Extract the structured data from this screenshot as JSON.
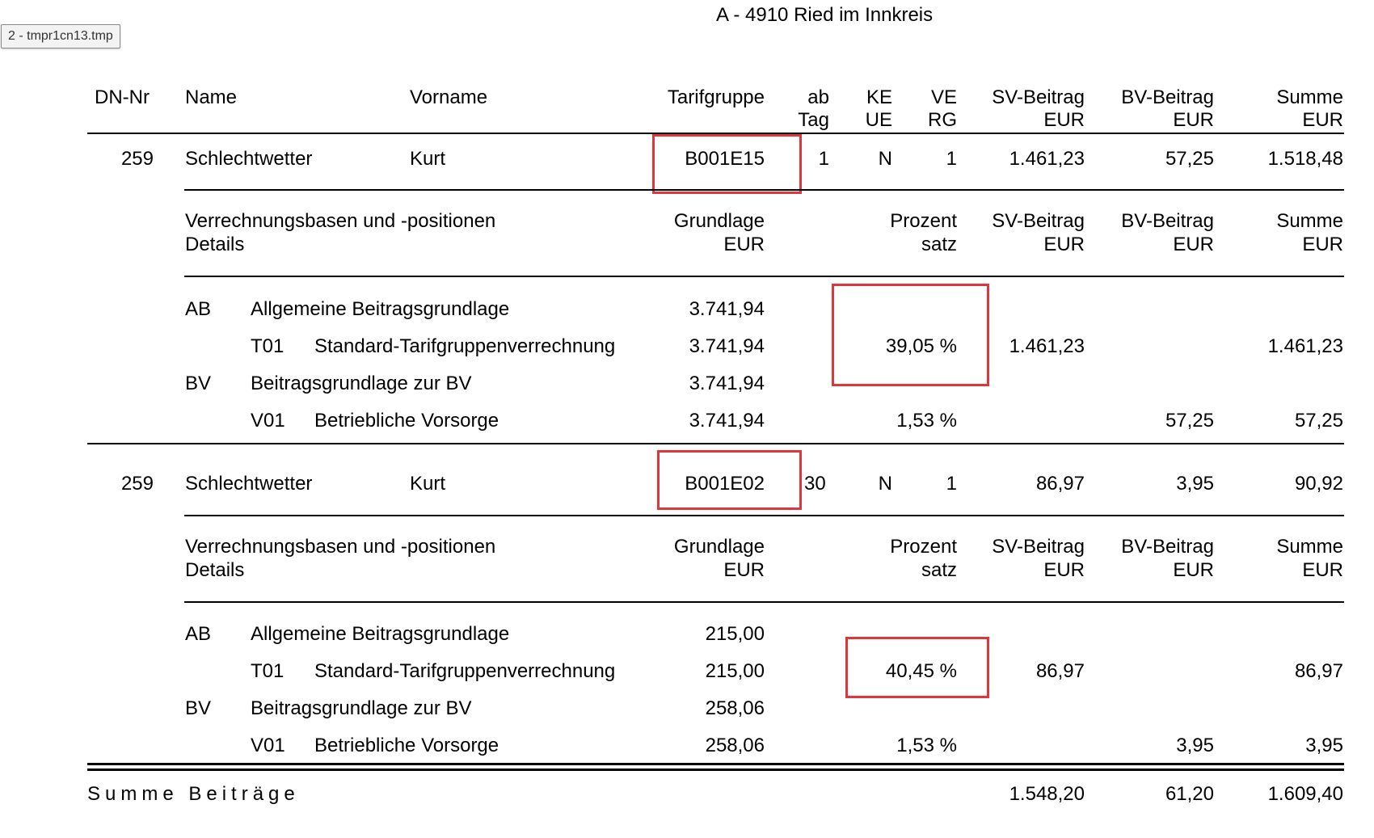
{
  "header": {
    "address": "A - 4910 Ried im Innkreis"
  },
  "tab": {
    "label": "2 - tmpr1cn13.tmp"
  },
  "columns": {
    "dn_nr": "DN-Nr",
    "name": "Name",
    "vorname": "Vorname",
    "tarifgruppe": "Tarifgruppe",
    "ab_1": "ab",
    "ab_2": "Tag",
    "ke_1": "KE",
    "ke_2": "UE",
    "ve_1": "VE",
    "ve_2": "RG",
    "sv_1": "SV-Beitrag",
    "sv_2": "EUR",
    "bv_1": "BV-Beitrag",
    "bv_2": "EUR",
    "summe_1": "Summe",
    "summe_2": "EUR"
  },
  "detail_header": {
    "title_1": "Verrechnungsbasen und -positionen",
    "title_2": "Details",
    "grundlage_1": "Grundlage",
    "grundlage_2": "EUR",
    "prozent_1": "Prozent",
    "prozent_2": "satz",
    "sv_1": "SV-Beitrag",
    "sv_2": "EUR",
    "bv_1": "BV-Beitrag",
    "bv_2": "EUR",
    "summe_1": "Summe",
    "summe_2": "EUR"
  },
  "blocks": [
    {
      "employee": {
        "dn_nr": "259",
        "name": "Schlechtwetter",
        "vorname": "Kurt",
        "tarifgruppe": "B001E15",
        "ab_tag": "1",
        "keue": "N",
        "verg": "1",
        "sv": "1.461,23",
        "bv": "57,25",
        "summe": "1.518,48"
      },
      "details": {
        "ab_code": "AB",
        "ab_label": "Allgemeine Beitragsgrundlage",
        "ab_grundlage": "3.741,94",
        "t01_code": "T01",
        "t01_label": "Standard-Tarifgruppenverrechnung",
        "t01_grundlage": "3.741,94",
        "t01_prozent": "39,05 %",
        "t01_sv": "1.461,23",
        "t01_summe": "1.461,23",
        "bv_code": "BV",
        "bv_label": "Beitragsgrundlage zur BV",
        "bv_grundlage": "3.741,94",
        "v01_code": "V01",
        "v01_label": "Betriebliche Vorsorge",
        "v01_grundlage": "3.741,94",
        "v01_prozent": "1,53 %",
        "v01_bv": "57,25",
        "v01_summe": "57,25"
      }
    },
    {
      "employee": {
        "dn_nr": "259",
        "name": "Schlechtwetter",
        "vorname": "Kurt",
        "tarifgruppe": "B001E02",
        "ab_tag": "30",
        "keue": "N",
        "verg": "1",
        "sv": "86,97",
        "bv": "3,95",
        "summe": "90,92"
      },
      "details": {
        "ab_code": "AB",
        "ab_label": "Allgemeine Beitragsgrundlage",
        "ab_grundlage": "215,00",
        "t01_code": "T01",
        "t01_label": "Standard-Tarifgruppenverrechnung",
        "t01_grundlage": "215,00",
        "t01_prozent": "40,45 %",
        "t01_sv": "86,97",
        "t01_summe": "86,97",
        "bv_code": "BV",
        "bv_label": "Beitragsgrundlage zur BV",
        "bv_grundlage": "258,06",
        "v01_code": "V01",
        "v01_label": "Betriebliche Vorsorge",
        "v01_grundlage": "258,06",
        "v01_prozent": "1,53 %",
        "v01_bv": "3,95",
        "v01_summe": "3,95"
      }
    }
  ],
  "totals": {
    "label": "Summe Beiträge",
    "sv": "1.548,20",
    "bv": "61,20",
    "summe": "1.609,40"
  },
  "highlight_color": "#e0353b"
}
